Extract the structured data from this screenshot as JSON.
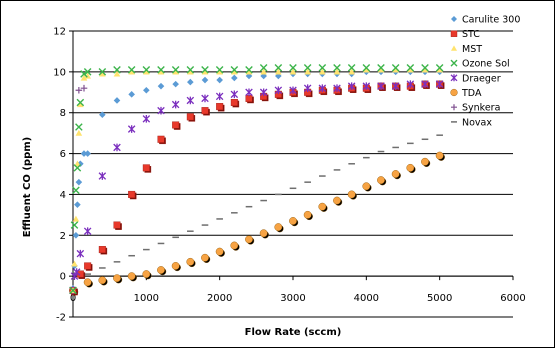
{
  "chart_data": {
    "type": "scatter",
    "title": "",
    "xlabel": "Flow Rate (sccm)",
    "ylabel": "Effluent CO (ppm)",
    "xlim": [
      0,
      6000
    ],
    "ylim": [
      -2,
      12
    ],
    "xticks": [
      "0",
      "1000",
      "2000",
      "3000",
      "4000",
      "5000",
      "6000"
    ],
    "yticks": [
      "-2",
      "0",
      "2",
      "4",
      "6",
      "8",
      "10",
      "12"
    ],
    "grid": "horizontal",
    "legend_position": "right",
    "series": [
      {
        "name": "Carulite 300",
        "marker": "diamond",
        "color": "#5B9BD5",
        "x": [
          0,
          20,
          40,
          60,
          80,
          100,
          150,
          200,
          400,
          600,
          800,
          1000,
          1200,
          1400,
          1600,
          1800,
          2000,
          2200,
          2400,
          2600,
          2800,
          3000,
          3200,
          3400,
          3600,
          3800,
          4000,
          4200,
          4400,
          4600,
          4800,
          5000
        ],
        "y": [
          -0.6,
          0.5,
          2.0,
          3.5,
          4.6,
          5.5,
          6.0,
          6.0,
          7.9,
          8.6,
          8.9,
          9.1,
          9.3,
          9.4,
          9.5,
          9.6,
          9.6,
          9.7,
          9.8,
          9.8,
          9.8,
          9.9,
          9.9,
          9.9,
          9.9,
          9.9,
          10.0,
          10.0,
          10.0,
          10.0,
          10.0,
          10.0
        ]
      },
      {
        "name": "STC",
        "marker": "square",
        "color": "#E8392B",
        "x": [
          0,
          100,
          200,
          400,
          600,
          800,
          1000,
          1200,
          1400,
          1600,
          1800,
          2000,
          2200,
          2400,
          2600,
          2800,
          3000,
          3200,
          3400,
          3600,
          3800,
          4000,
          4200,
          4400,
          4600,
          4800,
          5000
        ],
        "y": [
          -0.7,
          0.1,
          0.5,
          1.3,
          2.5,
          4.0,
          5.3,
          6.7,
          7.4,
          7.8,
          8.1,
          8.3,
          8.5,
          8.7,
          8.8,
          8.9,
          9.0,
          9.0,
          9.1,
          9.1,
          9.2,
          9.2,
          9.3,
          9.3,
          9.3,
          9.4,
          9.4
        ]
      },
      {
        "name": "MST",
        "marker": "triangle",
        "color": "#FFE36E",
        "x": [
          0,
          20,
          40,
          60,
          80,
          100,
          150,
          200,
          400,
          600,
          800,
          1000,
          1200,
          1400,
          1600,
          1800,
          2000,
          2200,
          2400,
          2600,
          2800,
          3000,
          3200,
          3400,
          3600,
          3800,
          4000,
          4200,
          4400,
          4600,
          4800,
          5000
        ],
        "y": [
          -0.7,
          0.6,
          2.8,
          5.5,
          7.0,
          8.4,
          9.7,
          9.8,
          9.9,
          9.9,
          10.0,
          10.0,
          10.0,
          10.0,
          10.0,
          10.0,
          10.0,
          10.0,
          10.0,
          10.0,
          10.0,
          10.0,
          10.0,
          10.0,
          10.0,
          10.0,
          10.1,
          10.1,
          10.1,
          10.1,
          10.1,
          10.1
        ]
      },
      {
        "name": "Ozone Sol",
        "marker": "x",
        "color": "#3CB44B",
        "x": [
          0,
          20,
          40,
          60,
          80,
          100,
          150,
          200,
          400,
          600,
          800,
          1000,
          1200,
          1400,
          1600,
          1800,
          2000,
          2200,
          2400,
          2600,
          2800,
          3000,
          3200,
          3400,
          3600,
          3800,
          4000,
          4200,
          4400,
          4600,
          4800,
          5000
        ],
        "y": [
          -0.7,
          2.5,
          4.2,
          5.3,
          7.3,
          8.5,
          9.9,
          10.0,
          10.0,
          10.1,
          10.1,
          10.1,
          10.1,
          10.1,
          10.1,
          10.1,
          10.1,
          10.1,
          10.1,
          10.2,
          10.2,
          10.2,
          10.2,
          10.2,
          10.2,
          10.2,
          10.2,
          10.2,
          10.2,
          10.2,
          10.2,
          10.2
        ]
      },
      {
        "name": "Draeger",
        "marker": "star",
        "color": "#7B2FBE",
        "x": [
          0,
          20,
          50,
          100,
          200,
          400,
          600,
          800,
          1000,
          1200,
          1400,
          1600,
          1800,
          2000,
          2200,
          2400,
          2600,
          2800,
          3000,
          3200,
          3400,
          3600,
          3800,
          4000,
          4200,
          4400,
          4600,
          4800,
          5000
        ],
        "y": [
          -0.7,
          0.0,
          0.2,
          1.1,
          2.2,
          4.9,
          6.3,
          7.2,
          7.7,
          8.1,
          8.4,
          8.6,
          8.7,
          8.8,
          8.9,
          9.0,
          9.0,
          9.1,
          9.1,
          9.2,
          9.2,
          9.2,
          9.3,
          9.3,
          9.3,
          9.3,
          9.4,
          9.4,
          9.4
        ]
      },
      {
        "name": "TDA",
        "marker": "circle",
        "color": "#F7A343",
        "x": [
          0,
          200,
          400,
          600,
          800,
          1000,
          1200,
          1400,
          1600,
          1800,
          2000,
          2200,
          2400,
          2600,
          2800,
          3000,
          3200,
          3400,
          3600,
          3800,
          4000,
          4200,
          4400,
          4600,
          4800,
          5000
        ],
        "y": [
          -0.7,
          -0.3,
          -0.2,
          -0.1,
          0.0,
          0.1,
          0.3,
          0.5,
          0.7,
          0.9,
          1.2,
          1.5,
          1.8,
          2.1,
          2.4,
          2.7,
          3.0,
          3.4,
          3.7,
          4.0,
          4.4,
          4.7,
          5.0,
          5.3,
          5.6,
          5.9
        ]
      },
      {
        "name": "Synkera",
        "marker": "plus",
        "color": "#7F4F8F",
        "x": [
          80,
          150
        ],
        "y": [
          9.1,
          9.2
        ]
      },
      {
        "name": "Novax",
        "marker": "dash",
        "color": "#6E6E6E",
        "x": [
          200,
          400,
          600,
          800,
          1000,
          1200,
          1400,
          1600,
          1800,
          2000,
          2200,
          2400,
          2600,
          2800,
          3000,
          3200,
          3400,
          3600,
          3800,
          4000,
          4200,
          4400,
          4600,
          4800,
          5000
        ],
        "y": [
          0.1,
          0.4,
          0.7,
          1.0,
          1.3,
          1.6,
          1.9,
          2.2,
          2.5,
          2.8,
          3.1,
          3.4,
          3.7,
          4.0,
          4.3,
          4.6,
          4.9,
          5.2,
          5.5,
          5.8,
          6.1,
          6.3,
          6.5,
          6.7,
          6.9
        ]
      }
    ]
  }
}
